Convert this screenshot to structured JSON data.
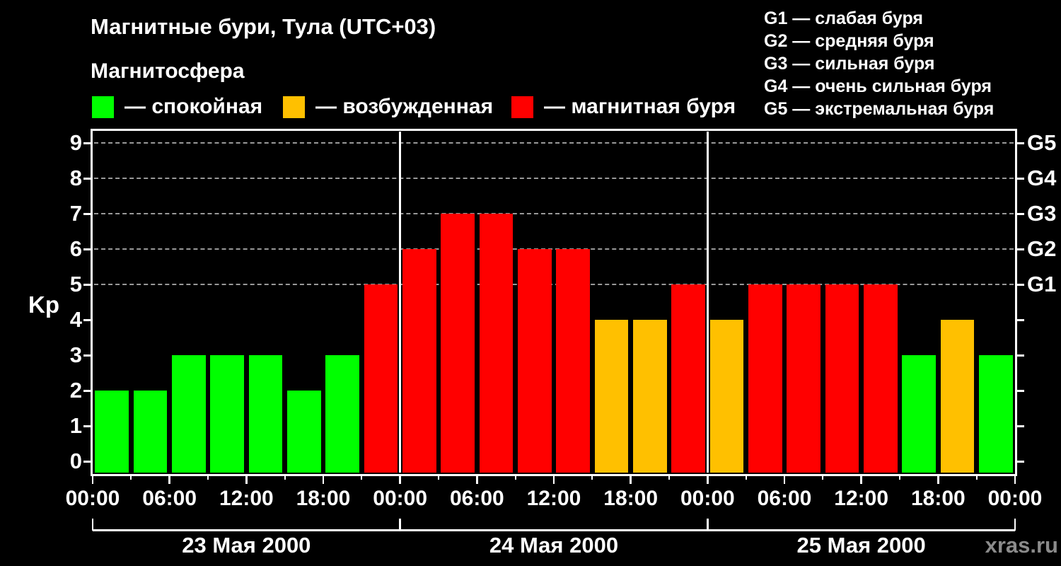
{
  "title": "Магнитные бури, Тула (UTC+03)",
  "subtitle": "Магнитосфера",
  "legend": {
    "items": [
      {
        "key": "quiet",
        "label": "— спокойная"
      },
      {
        "key": "excited",
        "label": "— возбужденная"
      },
      {
        "key": "storm",
        "label": "— магнитная буря"
      }
    ]
  },
  "storm_scale_legend": [
    "G1 — слабая буря",
    "G2 — средняя буря",
    "G3 — сильная буря",
    "G4 — очень сильная буря",
    "G5 — экстремальная буря"
  ],
  "watermark": "xras.ru",
  "colors": {
    "quiet": "#00ff00",
    "excited": "#ffc000",
    "storm": "#ff0000",
    "grid": "#999999",
    "axis": "#ffffff",
    "watermark": "#8b8b8b",
    "background": "#000000"
  },
  "chart_data": {
    "type": "bar",
    "title": "Магнитные бури, Тула (UTC+03)",
    "xlabel": "",
    "ylabel": "Kp",
    "ylim": [
      0,
      9
    ],
    "yticks": [
      0,
      1,
      2,
      3,
      4,
      5,
      6,
      7,
      8,
      9
    ],
    "gridlines_at": [
      5,
      6,
      7,
      8,
      9
    ],
    "grid": "dashed",
    "legend_position": "top",
    "right_axis": [
      {
        "kp": 5,
        "label": "G1"
      },
      {
        "kp": 6,
        "label": "G2"
      },
      {
        "kp": 7,
        "label": "G3"
      },
      {
        "kp": 8,
        "label": "G4"
      },
      {
        "kp": 9,
        "label": "G5"
      }
    ],
    "hours_per_bar": 3,
    "x_tick_labels": [
      "00:00",
      "06:00",
      "12:00",
      "18:00",
      "00:00",
      "06:00",
      "12:00",
      "18:00",
      "00:00",
      "06:00",
      "12:00",
      "18:00",
      "00:00"
    ],
    "days": [
      {
        "date": "23 Мая 2000",
        "kp_values": [
          2,
          2,
          3,
          3,
          3,
          2,
          3,
          5
        ]
      },
      {
        "date": "24 Мая 2000",
        "kp_values": [
          6,
          7,
          7,
          6,
          6,
          4,
          4,
          5
        ]
      },
      {
        "date": "25 Мая 2000",
        "kp_values": [
          4,
          5,
          5,
          5,
          5,
          3,
          4,
          3
        ]
      }
    ],
    "category_rule": {
      "quiet": "Kp <= 3",
      "excited": "Kp = 4",
      "storm": "Kp >= 5"
    }
  }
}
